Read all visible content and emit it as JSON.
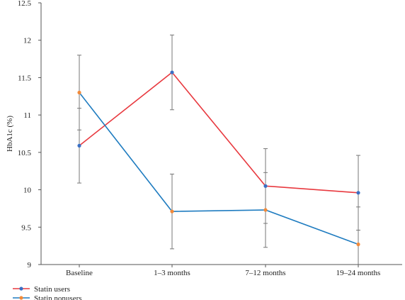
{
  "chart_data": {
    "type": "line",
    "ylabel": "HbA1c (%)",
    "xlabel": "",
    "ylim": [
      9,
      12.5
    ],
    "yticks": [
      "9",
      "9.5",
      "10",
      "10.5",
      "11",
      "11.5",
      "12",
      "12.5"
    ],
    "categories": [
      "Baseline",
      "1–3 months",
      "7–12 months",
      "19–24 months"
    ],
    "grid": false,
    "legend_position": "bottom-left",
    "series": [
      {
        "name": "Statin users",
        "line_color": "#e8393f",
        "marker_color": "#3a6fc4",
        "values": [
          10.59,
          11.57,
          10.05,
          9.96
        ],
        "error_low": [
          10.09,
          11.07,
          9.55,
          9.46
        ],
        "error_high": [
          11.09,
          12.07,
          10.55,
          10.46
        ]
      },
      {
        "name": "Statin nonusers",
        "line_color": "#1f7cc0",
        "marker_color": "#f28a3a",
        "values": [
          11.3,
          9.71,
          9.73,
          9.27
        ],
        "error_low": [
          10.8,
          9.21,
          9.23,
          8.77
        ],
        "error_high": [
          11.8,
          10.21,
          10.23,
          9.77
        ]
      }
    ]
  }
}
